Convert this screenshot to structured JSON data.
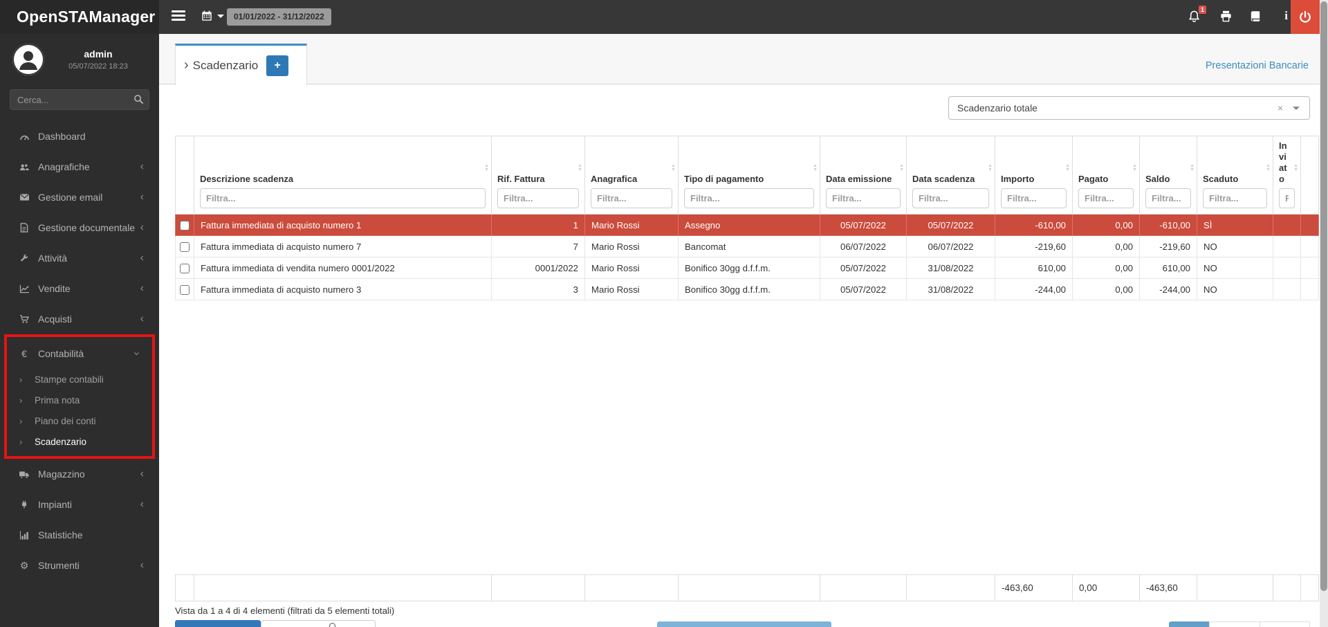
{
  "app_title": "OpenSTAManager",
  "navbar": {
    "date_range": "01/01/2022 - 31/12/2022",
    "notification_count": "1"
  },
  "sidebar": {
    "user": {
      "name": "admin",
      "datetime": "05/07/2022 18:23"
    },
    "search_placeholder": "Cerca...",
    "items_top": [
      {
        "label": "Dashboard",
        "icon": "dashboard",
        "chevron": ""
      },
      {
        "label": "Anagrafiche",
        "icon": "users",
        "chevron": "left"
      },
      {
        "label": "Gestione email",
        "icon": "envelope",
        "chevron": "left"
      },
      {
        "label": "Gestione documentale",
        "icon": "file",
        "chevron": "left"
      },
      {
        "label": "Attività",
        "icon": "wrench",
        "chevron": "left"
      },
      {
        "label": "Vendite",
        "icon": "chart-line",
        "chevron": "left"
      },
      {
        "label": "Acquisti",
        "icon": "cart",
        "chevron": "left"
      }
    ],
    "contabilita": {
      "label": "Contabilità",
      "icon": "euro",
      "chevron": "down",
      "submenu": [
        {
          "label": "Stampe contabili",
          "active": false
        },
        {
          "label": "Prima nota",
          "active": false
        },
        {
          "label": "Piano dei conti",
          "active": false
        },
        {
          "label": "Scadenzario",
          "active": true
        }
      ]
    },
    "items_bottom": [
      {
        "label": "Magazzino",
        "icon": "truck",
        "chevron": "left"
      },
      {
        "label": "Impianti",
        "icon": "plug",
        "chevron": "left"
      },
      {
        "label": "Statistiche",
        "icon": "bar-chart",
        "chevron": ""
      },
      {
        "label": "Strumenti",
        "icon": "gear",
        "chevron": "left"
      }
    ]
  },
  "main": {
    "tab_label": "Scadenzario",
    "add_button": "+",
    "top_link": "Presentazioni Bancarie",
    "view_select": {
      "value": "Scadenzario totale"
    },
    "table": {
      "columns": [
        {
          "key": "checkbox",
          "label": "",
          "filter": ""
        },
        {
          "key": "descrizione",
          "label": "Descrizione scadenza",
          "filter": "Filtra...",
          "align": "l"
        },
        {
          "key": "rif",
          "label": "Rif. Fattura",
          "filter": "Filtra...",
          "align": "r"
        },
        {
          "key": "anagrafica",
          "label": "Anagrafica",
          "filter": "Filtra...",
          "align": "l"
        },
        {
          "key": "tipo",
          "label": "Tipo di pagamento",
          "filter": "Filtra...",
          "align": "l"
        },
        {
          "key": "emissione",
          "label": "Data emissione",
          "filter": "Filtra...",
          "align": "c"
        },
        {
          "key": "scadenza",
          "label": "Data scadenza",
          "filter": "Filtra...",
          "align": "c"
        },
        {
          "key": "importo",
          "label": "Importo",
          "filter": "Filtra...",
          "align": "r"
        },
        {
          "key": "pagato",
          "label": "Pagato",
          "filter": "Filtra...",
          "align": "r"
        },
        {
          "key": "saldo",
          "label": "Saldo",
          "filter": "Filtra...",
          "align": "r"
        },
        {
          "key": "scaduto",
          "label": "Scaduto",
          "filter": "Filtra...",
          "align": "l"
        },
        {
          "key": "inviato",
          "label": "Inviato",
          "filter": "Filtra...",
          "align": "l"
        },
        {
          "key": "spacer",
          "label": "",
          "filter": ""
        }
      ],
      "rows": [
        {
          "descrizione": "Fattura immediata di acquisto numero 1",
          "rif": "1",
          "anagrafica": "Mario Rossi",
          "tipo": "Assegno",
          "emissione": "05/07/2022",
          "scadenza": "05/07/2022",
          "importo": "-610,00",
          "pagato": "0,00",
          "saldo": "-610,00",
          "scaduto": "SÌ",
          "inviato": "",
          "highlighted": true
        },
        {
          "descrizione": "Fattura immediata di acquisto numero 7",
          "rif": "7",
          "anagrafica": "Mario Rossi",
          "tipo": "Bancomat",
          "emissione": "06/07/2022",
          "scadenza": "06/07/2022",
          "importo": "-219,60",
          "pagato": "0,00",
          "saldo": "-219,60",
          "scaduto": "NO",
          "inviato": "",
          "highlighted": false
        },
        {
          "descrizione": "Fattura immediata di vendita numero 0001/2022",
          "rif": "0001/2022",
          "anagrafica": "Mario Rossi",
          "tipo": "Bonifico 30gg d.f.f.m.",
          "emissione": "05/07/2022",
          "scadenza": "31/08/2022",
          "importo": "610,00",
          "pagato": "0,00",
          "saldo": "610,00",
          "scaduto": "NO",
          "inviato": "",
          "highlighted": false
        },
        {
          "descrizione": "Fattura immediata di acquisto numero 3",
          "rif": "3",
          "anagrafica": "Mario Rossi",
          "tipo": "Bonifico 30gg d.f.f.m.",
          "emissione": "05/07/2022",
          "scadenza": "31/08/2022",
          "importo": "-244,00",
          "pagato": "0,00",
          "saldo": "-244,00",
          "scaduto": "NO",
          "inviato": "",
          "highlighted": false
        }
      ],
      "totals": {
        "importo": "-463,60",
        "pagato": "0,00",
        "saldo": "-463,60"
      },
      "info": "Vista da 1 a 4 di 4 elementi (filtrati da 5 elementi totali)"
    }
  },
  "colors": {
    "accent": "#3c8dbc",
    "danger_row": "#cb4b3c",
    "logout": "#dd4b39",
    "highlight_border": "#e51414"
  }
}
